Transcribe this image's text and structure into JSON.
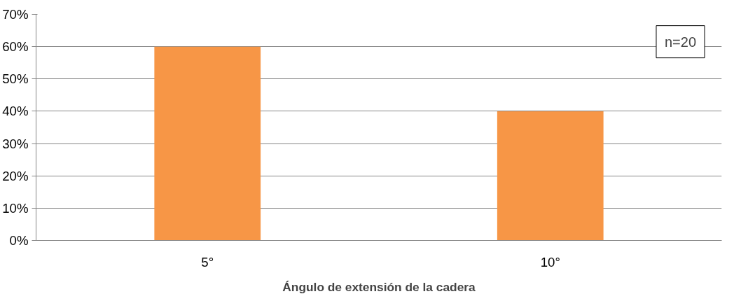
{
  "chart_data": {
    "type": "bar",
    "categories": [
      "5°",
      "10°"
    ],
    "values": [
      60,
      40
    ],
    "color": "#f79646",
    "xlabel": "Ángulo de extensión de la cadera",
    "ylim": [
      0,
      70
    ],
    "yticks": [
      {
        "value": 0,
        "label": "0%"
      },
      {
        "value": 10,
        "label": "10%"
      },
      {
        "value": 20,
        "label": "20%"
      },
      {
        "value": 30,
        "label": "30%"
      },
      {
        "value": 40,
        "label": "40%"
      },
      {
        "value": 50,
        "label": "50%"
      },
      {
        "value": 60,
        "label": "60%"
      },
      {
        "value": 70,
        "label": "70%"
      }
    ],
    "grid": "y",
    "annotations": [
      "n=20"
    ]
  }
}
